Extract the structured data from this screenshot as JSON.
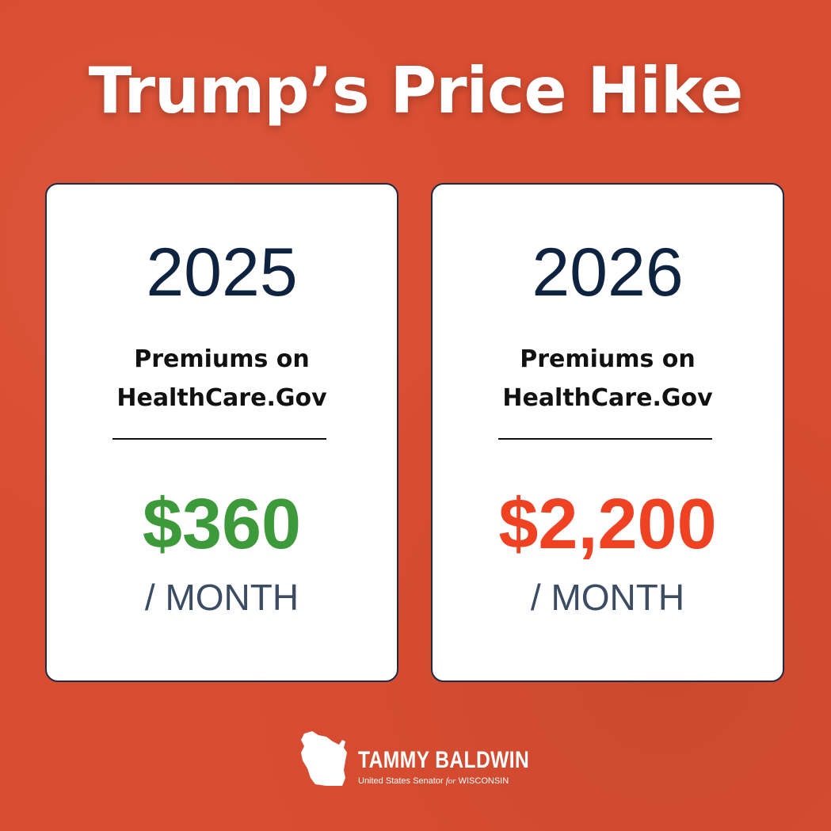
{
  "title": "Trump’s Price Hike",
  "colors": {
    "background": "#d94d31",
    "card": "#ffffff",
    "year_text": "#0e2340",
    "price_low": "#3d9a3a",
    "price_high": "#ee4223"
  },
  "cards": [
    {
      "year": "2025",
      "desc_line1": "Premiums on",
      "desc_line2": "HealthCare.Gov",
      "price": "$360",
      "per": "/ MONTH",
      "price_color": "#3d9a3a"
    },
    {
      "year": "2026",
      "desc_line1": "Premiums on",
      "desc_line2": "HealthCare.Gov",
      "price": "$2,200",
      "per": "/ MONTH",
      "price_color": "#ee4223"
    }
  ],
  "logo": {
    "icon": "wisconsin-state-icon",
    "name": "TAMMY BALDWIN",
    "subtitle_pre": "United States Senator",
    "subtitle_for": "for",
    "subtitle_post": "WISCONSIN"
  }
}
